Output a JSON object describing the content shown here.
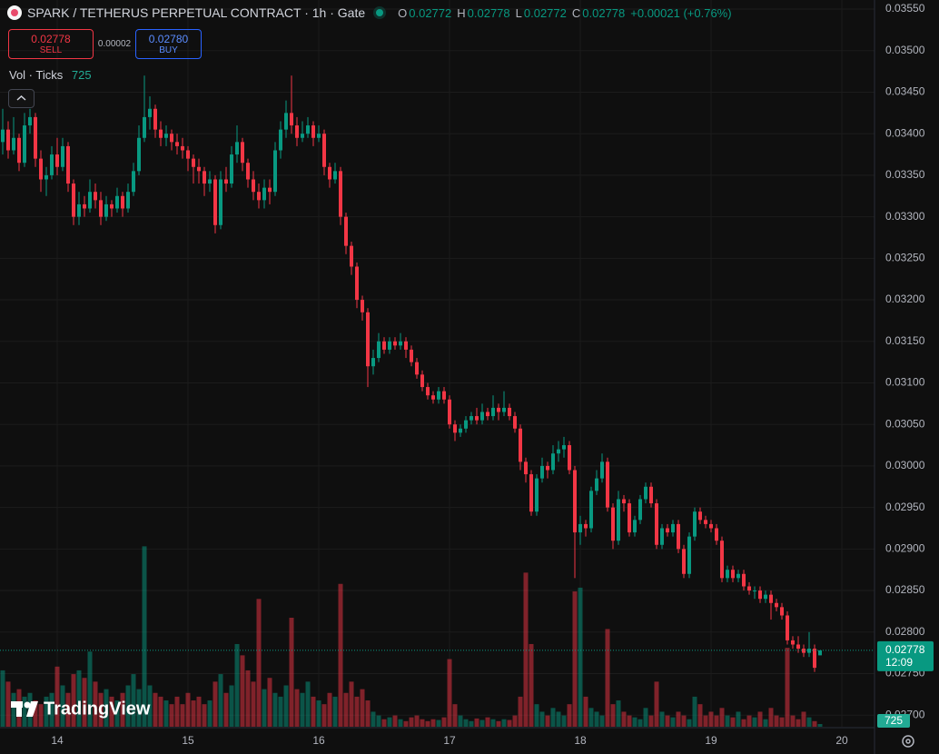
{
  "chart_data": {
    "type": "candlestick",
    "title": "SPARK / TETHERUS PERPETUAL CONTRACT · 1h · Gate",
    "header_ohlc": [
      {
        "label": "O",
        "value": 0.02772
      },
      {
        "label": "H",
        "value": 0.02778
      },
      {
        "label": "L",
        "value": 0.02772
      },
      {
        "label": "C",
        "value": 0.02778
      }
    ],
    "change": "+0.00021 (+0.76%)",
    "trade": {
      "sell_price": 0.02778,
      "sell_label": "SELL",
      "spread": 2e-05,
      "buy_price": {
        "value": 0.0278,
        "label": "0.02780"
      },
      "buy_label": "BUY"
    },
    "indicator_label": "Vol · Ticks",
    "countdown": "12:09",
    "watermark": "TradingView",
    "up_color": "#089981",
    "down_color": "#f23645",
    "grid": true,
    "xlim": [
      13.5625,
      20.2292
    ],
    "xticks": [
      14,
      15,
      16,
      17,
      18,
      19,
      20
    ],
    "ylim": [
      0.02686,
      0.03561
    ],
    "yticks": [
      {
        "value": 0.027,
        "label": "0.02700"
      },
      {
        "value": 0.0275,
        "label": "0.02750"
      },
      {
        "value": 0.028,
        "label": "0.02800"
      },
      {
        "value": 0.0285,
        "label": "0.02850"
      },
      {
        "value": 0.029,
        "label": "0.02900"
      },
      {
        "value": 0.0295,
        "label": "0.02950"
      },
      {
        "value": 0.03,
        "label": "0.03000"
      },
      {
        "value": 0.0305,
        "label": "0.03050"
      },
      {
        "value": 0.031,
        "label": "0.03100"
      },
      {
        "value": 0.0315,
        "label": "0.03150"
      },
      {
        "value": 0.032,
        "label": "0.03200"
      },
      {
        "value": 0.0325,
        "label": "0.03250"
      },
      {
        "value": 0.033,
        "label": "0.03300"
      },
      {
        "value": 0.0335,
        "label": "0.03350"
      },
      {
        "value": 0.034,
        "label": "0.03400"
      },
      {
        "value": 0.0345,
        "label": "0.03450"
      },
      {
        "value": 0.035,
        "label": "0.03500"
      },
      {
        "value": 0.0355,
        "label": "0.03550"
      }
    ],
    "volume_lim": [
      0,
      58000
    ],
    "x": [
      13.5833,
      13.625,
      13.6667,
      13.7083,
      13.75,
      13.7917,
      13.8333,
      13.875,
      13.9167,
      13.9583,
      14,
      14.0417,
      14.0833,
      14.125,
      14.1667,
      14.2083,
      14.25,
      14.2917,
      14.3333,
      14.375,
      14.4167,
      14.4583,
      14.5,
      14.5417,
      14.5833,
      14.625,
      14.6667,
      14.7083,
      14.75,
      14.7917,
      14.8333,
      14.875,
      14.9167,
      14.9583,
      15,
      15.0417,
      15.0833,
      15.125,
      15.1667,
      15.2083,
      15.25,
      15.2917,
      15.3333,
      15.375,
      15.4167,
      15.4583,
      15.5,
      15.5417,
      15.5833,
      15.625,
      15.6667,
      15.7083,
      15.75,
      15.7917,
      15.8333,
      15.875,
      15.9167,
      15.9583,
      16,
      16.0417,
      16.0833,
      16.125,
      16.1667,
      16.2083,
      16.25,
      16.2917,
      16.3333,
      16.375,
      16.4167,
      16.4583,
      16.5,
      16.5417,
      16.5833,
      16.625,
      16.6667,
      16.7083,
      16.75,
      16.7917,
      16.8333,
      16.875,
      16.9167,
      16.9583,
      17,
      17.0417,
      17.0833,
      17.125,
      17.1667,
      17.2083,
      17.25,
      17.2917,
      17.3333,
      17.375,
      17.4167,
      17.4583,
      17.5,
      17.5417,
      17.5833,
      17.625,
      17.6667,
      17.7083,
      17.75,
      17.7917,
      17.8333,
      17.875,
      17.9167,
      17.9583,
      18,
      18.0417,
      18.0833,
      18.125,
      18.1667,
      18.2083,
      18.25,
      18.2917,
      18.3333,
      18.375,
      18.4167,
      18.4583,
      18.5,
      18.5417,
      18.5833,
      18.625,
      18.6667,
      18.7083,
      18.75,
      18.7917,
      18.8333,
      18.875,
      18.9167,
      18.9583,
      19,
      19.0417,
      19.0833,
      19.125,
      19.1667,
      19.2083,
      19.25,
      19.2917,
      19.3333,
      19.375,
      19.4167,
      19.4583,
      19.5,
      19.5417,
      19.5833,
      19.625,
      19.6667,
      19.7083,
      19.75,
      19.7917,
      19.8333
    ],
    "ohlc": [
      [
        0.0339,
        0.0343,
        0.03375,
        0.03405
      ],
      [
        0.03405,
        0.03415,
        0.0337,
        0.0338
      ],
      [
        0.0338,
        0.0342,
        0.03375,
        0.03395
      ],
      [
        0.03395,
        0.034,
        0.03355,
        0.03365
      ],
      [
        0.03365,
        0.03425,
        0.0336,
        0.0341
      ],
      [
        0.0341,
        0.0343,
        0.034,
        0.0342
      ],
      [
        0.0342,
        0.03425,
        0.0336,
        0.0337
      ],
      [
        0.0337,
        0.0338,
        0.0333,
        0.03345
      ],
      [
        0.03345,
        0.0336,
        0.03325,
        0.0335
      ],
      [
        0.0335,
        0.03385,
        0.03345,
        0.03375
      ],
      [
        0.03375,
        0.03395,
        0.0335,
        0.0336
      ],
      [
        0.0336,
        0.03395,
        0.03355,
        0.03385
      ],
      [
        0.03385,
        0.0339,
        0.0333,
        0.0334
      ],
      [
        0.0334,
        0.03345,
        0.0329,
        0.033
      ],
      [
        0.033,
        0.0333,
        0.0329,
        0.03315
      ],
      [
        0.03315,
        0.03325,
        0.033,
        0.0331
      ],
      [
        0.0331,
        0.03345,
        0.03305,
        0.0333
      ],
      [
        0.0333,
        0.0334,
        0.0331,
        0.0332
      ],
      [
        0.0332,
        0.0333,
        0.0329,
        0.033
      ],
      [
        0.033,
        0.03325,
        0.03295,
        0.03315
      ],
      [
        0.03315,
        0.0332,
        0.033,
        0.0331
      ],
      [
        0.0331,
        0.03335,
        0.03305,
        0.03325
      ],
      [
        0.03325,
        0.0333,
        0.033,
        0.0331
      ],
      [
        0.0331,
        0.0334,
        0.03305,
        0.0333
      ],
      [
        0.0333,
        0.03365,
        0.03325,
        0.03355
      ],
      [
        0.03355,
        0.0341,
        0.0335,
        0.03395
      ],
      [
        0.03395,
        0.0347,
        0.0339,
        0.0342
      ],
      [
        0.0342,
        0.03445,
        0.03405,
        0.0343
      ],
      [
        0.0343,
        0.03435,
        0.03395,
        0.03405
      ],
      [
        0.03405,
        0.03415,
        0.03385,
        0.03395
      ],
      [
        0.03395,
        0.0341,
        0.03385,
        0.034
      ],
      [
        0.034,
        0.03405,
        0.0338,
        0.0339
      ],
      [
        0.0339,
        0.034,
        0.03375,
        0.03385
      ],
      [
        0.03385,
        0.03395,
        0.0337,
        0.0338
      ],
      [
        0.0338,
        0.03385,
        0.03355,
        0.0337
      ],
      [
        0.0337,
        0.03375,
        0.0334,
        0.0336
      ],
      [
        0.0336,
        0.0337,
        0.0334,
        0.03355
      ],
      [
        0.03355,
        0.0336,
        0.03325,
        0.0334
      ],
      [
        0.0334,
        0.03355,
        0.0333,
        0.03345
      ],
      [
        0.03345,
        0.0335,
        0.0328,
        0.0329
      ],
      [
        0.0329,
        0.03355,
        0.03285,
        0.03345
      ],
      [
        0.03345,
        0.0336,
        0.0333,
        0.0334
      ],
      [
        0.0334,
        0.03385,
        0.03335,
        0.03375
      ],
      [
        0.03375,
        0.0341,
        0.03365,
        0.0339
      ],
      [
        0.0339,
        0.03395,
        0.03355,
        0.03365
      ],
      [
        0.03365,
        0.0337,
        0.03335,
        0.03345
      ],
      [
        0.03345,
        0.03355,
        0.0332,
        0.0333
      ],
      [
        0.0333,
        0.0334,
        0.0331,
        0.0332
      ],
      [
        0.0332,
        0.03345,
        0.0331,
        0.03335
      ],
      [
        0.03335,
        0.03345,
        0.03315,
        0.0333
      ],
      [
        0.0333,
        0.0339,
        0.03325,
        0.0338
      ],
      [
        0.0338,
        0.03415,
        0.0337,
        0.03405
      ],
      [
        0.03405,
        0.0344,
        0.03395,
        0.03425
      ],
      [
        0.03425,
        0.0347,
        0.034,
        0.0341
      ],
      [
        0.0341,
        0.0342,
        0.03385,
        0.03395
      ],
      [
        0.03395,
        0.03415,
        0.0339,
        0.034
      ],
      [
        0.034,
        0.0342,
        0.03395,
        0.0341
      ],
      [
        0.0341,
        0.03415,
        0.03385,
        0.03395
      ],
      [
        0.03395,
        0.0341,
        0.0339,
        0.034
      ],
      [
        0.034,
        0.03405,
        0.0335,
        0.0336
      ],
      [
        0.0336,
        0.03365,
        0.03335,
        0.03345
      ],
      [
        0.03345,
        0.03365,
        0.0334,
        0.03355
      ],
      [
        0.03355,
        0.0336,
        0.0329,
        0.033
      ],
      [
        0.033,
        0.03305,
        0.03255,
        0.03265
      ],
      [
        0.03265,
        0.0327,
        0.0323,
        0.0324
      ],
      [
        0.0324,
        0.03245,
        0.0319,
        0.032
      ],
      [
        0.032,
        0.03205,
        0.03175,
        0.03185
      ],
      [
        0.03185,
        0.0319,
        0.03095,
        0.0312
      ],
      [
        0.0312,
        0.0314,
        0.0311,
        0.0313
      ],
      [
        0.0313,
        0.0316,
        0.03125,
        0.0315
      ],
      [
        0.0315,
        0.03155,
        0.03135,
        0.0314
      ],
      [
        0.0314,
        0.03155,
        0.03135,
        0.0315
      ],
      [
        0.0315,
        0.03155,
        0.0314,
        0.03145
      ],
      [
        0.03145,
        0.0316,
        0.0314,
        0.0315
      ],
      [
        0.0315,
        0.03155,
        0.0313,
        0.0314
      ],
      [
        0.0314,
        0.03145,
        0.0312,
        0.03125
      ],
      [
        0.03125,
        0.0313,
        0.03105,
        0.0311
      ],
      [
        0.0311,
        0.03115,
        0.0309,
        0.03095
      ],
      [
        0.03095,
        0.031,
        0.0308,
        0.03085
      ],
      [
        0.03085,
        0.0309,
        0.03075,
        0.0308
      ],
      [
        0.0308,
        0.03095,
        0.03075,
        0.0309
      ],
      [
        0.0309,
        0.03095,
        0.03075,
        0.0308
      ],
      [
        0.0308,
        0.03085,
        0.03045,
        0.0305
      ],
      [
        0.0305,
        0.03055,
        0.0303,
        0.0304
      ],
      [
        0.0304,
        0.0305,
        0.03035,
        0.03045
      ],
      [
        0.03045,
        0.0306,
        0.0304,
        0.03055
      ],
      [
        0.03055,
        0.03065,
        0.0305,
        0.0306
      ],
      [
        0.0306,
        0.0307,
        0.0305,
        0.03055
      ],
      [
        0.03055,
        0.03075,
        0.0305,
        0.03065
      ],
      [
        0.03065,
        0.0307,
        0.03055,
        0.0306
      ],
      [
        0.0306,
        0.03085,
        0.03055,
        0.0307
      ],
      [
        0.0307,
        0.03075,
        0.03055,
        0.03065
      ],
      [
        0.03065,
        0.0309,
        0.0306,
        0.0307
      ],
      [
        0.0307,
        0.03075,
        0.03055,
        0.0306
      ],
      [
        0.0306,
        0.03065,
        0.0304,
        0.03045
      ],
      [
        0.03045,
        0.0305,
        0.02995,
        0.03005
      ],
      [
        0.03005,
        0.0301,
        0.0298,
        0.0299
      ],
      [
        0.0299,
        0.02995,
        0.0294,
        0.02945
      ],
      [
        0.02945,
        0.0299,
        0.0294,
        0.02985
      ],
      [
        0.02985,
        0.0301,
        0.0298,
        0.03
      ],
      [
        0.03,
        0.03005,
        0.02985,
        0.02995
      ],
      [
        0.02995,
        0.03025,
        0.0299,
        0.03015
      ],
      [
        0.03015,
        0.0303,
        0.03005,
        0.0302
      ],
      [
        0.0302,
        0.03035,
        0.0301,
        0.03025
      ],
      [
        0.03025,
        0.0303,
        0.0299,
        0.02995
      ],
      [
        0.02995,
        0.03,
        0.02865,
        0.0292
      ],
      [
        0.0292,
        0.0294,
        0.02905,
        0.0293
      ],
      [
        0.0293,
        0.02935,
        0.02915,
        0.02925
      ],
      [
        0.02925,
        0.02975,
        0.0292,
        0.0297
      ],
      [
        0.0297,
        0.02995,
        0.02965,
        0.02985
      ],
      [
        0.02985,
        0.03015,
        0.0298,
        0.03005
      ],
      [
        0.03005,
        0.0301,
        0.02945,
        0.0295
      ],
      [
        0.0295,
        0.02955,
        0.029,
        0.0291
      ],
      [
        0.0291,
        0.0297,
        0.02905,
        0.0296
      ],
      [
        0.0296,
        0.02965,
        0.02945,
        0.02955
      ],
      [
        0.02955,
        0.0296,
        0.02915,
        0.0292
      ],
      [
        0.0292,
        0.0294,
        0.02915,
        0.02935
      ],
      [
        0.02935,
        0.02965,
        0.0293,
        0.0296
      ],
      [
        0.0296,
        0.0298,
        0.02955,
        0.02975
      ],
      [
        0.02975,
        0.0298,
        0.0295,
        0.02955
      ],
      [
        0.02955,
        0.0296,
        0.029,
        0.02905
      ],
      [
        0.02905,
        0.0293,
        0.029,
        0.02925
      ],
      [
        0.02925,
        0.0293,
        0.02915,
        0.0292
      ],
      [
        0.0292,
        0.02935,
        0.02915,
        0.0293
      ],
      [
        0.0293,
        0.02935,
        0.02895,
        0.029
      ],
      [
        0.029,
        0.02905,
        0.02865,
        0.0287
      ],
      [
        0.0287,
        0.0292,
        0.02865,
        0.02915
      ],
      [
        0.02915,
        0.0295,
        0.0291,
        0.02945
      ],
      [
        0.02945,
        0.0295,
        0.0293,
        0.02935
      ],
      [
        0.02935,
        0.0294,
        0.02925,
        0.0293
      ],
      [
        0.0293,
        0.02935,
        0.0292,
        0.02925
      ],
      [
        0.02925,
        0.0293,
        0.02905,
        0.0291
      ],
      [
        0.0291,
        0.02915,
        0.0286,
        0.02865
      ],
      [
        0.02865,
        0.0288,
        0.0286,
        0.02875
      ],
      [
        0.02875,
        0.0288,
        0.0286,
        0.02865
      ],
      [
        0.02865,
        0.02875,
        0.0286,
        0.0287
      ],
      [
        0.0287,
        0.02875,
        0.0285,
        0.02855
      ],
      [
        0.02855,
        0.0286,
        0.02845,
        0.0285
      ],
      [
        0.0285,
        0.02855,
        0.0284,
        0.0285
      ],
      [
        0.0285,
        0.02855,
        0.02835,
        0.0284
      ],
      [
        0.0284,
        0.0285,
        0.02835,
        0.02845
      ],
      [
        0.02845,
        0.0285,
        0.02815,
        0.02835
      ],
      [
        0.02835,
        0.0284,
        0.02825,
        0.0283
      ],
      [
        0.0283,
        0.02835,
        0.02815,
        0.0282
      ],
      [
        0.0282,
        0.02825,
        0.02785,
        0.0279
      ],
      [
        0.0279,
        0.02795,
        0.0278,
        0.02785
      ],
      [
        0.02785,
        0.02795,
        0.02775,
        0.0278
      ],
      [
        0.0278,
        0.02785,
        0.0277,
        0.02775
      ],
      [
        0.02775,
        0.028,
        0.0277,
        0.0278
      ],
      [
        0.0278,
        0.02785,
        0.02752,
        0.02757
      ],
      [
        0.02772,
        0.02778,
        0.02772,
        0.02778
      ]
    ],
    "volume": [
      15000,
      12000,
      9000,
      10000,
      8000,
      9000,
      7000,
      6000,
      8000,
      9000,
      16000,
      11000,
      9000,
      14000,
      15000,
      13000,
      20000,
      12000,
      9000,
      10000,
      8000,
      7000,
      9000,
      11000,
      14000,
      10000,
      48000,
      11000,
      9000,
      8000,
      7000,
      6000,
      8000,
      6000,
      9000,
      7000,
      8000,
      6000,
      7000,
      12000,
      14000,
      9000,
      11000,
      22000,
      19000,
      15000,
      12000,
      34000,
      10000,
      13000,
      9000,
      8000,
      11000,
      29000,
      10000,
      9000,
      12000,
      8000,
      7000,
      6000,
      9000,
      8000,
      38000,
      9000,
      12000,
      8000,
      10000,
      7000,
      4000,
      3000,
      2000,
      2500,
      3000,
      2000,
      1500,
      2500,
      3000,
      2000,
      1500,
      2000,
      1800,
      2500,
      18000,
      6000,
      3000,
      2000,
      1500,
      2200,
      1800,
      2500,
      2000,
      1500,
      2000,
      1800,
      3000,
      8000,
      41000,
      22000,
      6000,
      4000,
      3000,
      5000,
      4000,
      3000,
      6000,
      36000,
      37000,
      8000,
      5000,
      4000,
      3000,
      26000,
      6000,
      7000,
      4000,
      3000,
      2500,
      2000,
      5000,
      3000,
      12000,
      4000,
      3000,
      2500,
      4000,
      3000,
      2000,
      8000,
      6000,
      3000,
      4000,
      3000,
      5000,
      3000,
      2500,
      4000,
      2000,
      3000,
      2500,
      4000,
      2000,
      5000,
      3000,
      2500,
      21000,
      3000,
      2000,
      4000,
      2500,
      1500,
      725
    ]
  }
}
